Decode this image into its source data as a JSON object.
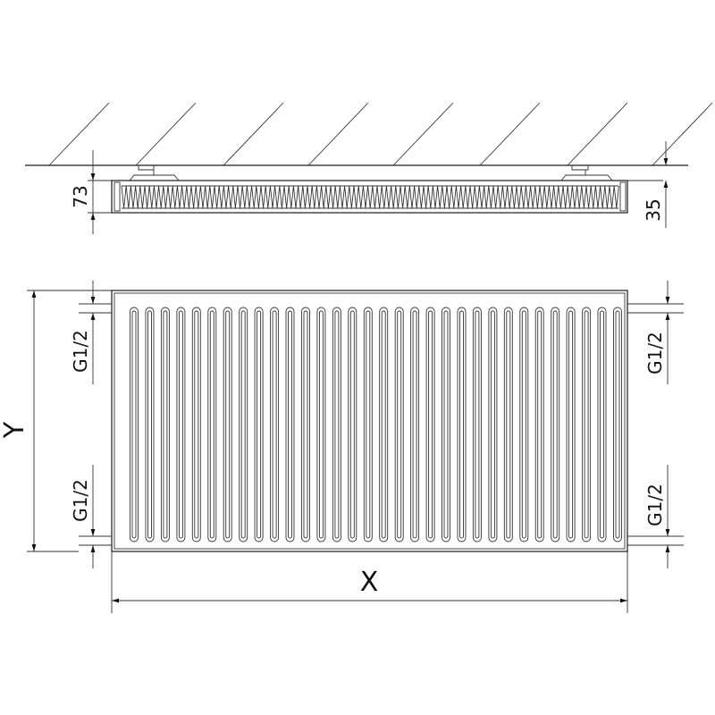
{
  "dimensions": {
    "depth": "73",
    "wall_gap": "35",
    "connection_top_left": "G1/2",
    "connection_bottom_left": "G1/2",
    "connection_top_right": "G1/2",
    "connection_bottom_right": "G1/2",
    "height": "Y",
    "width": "X"
  },
  "colors": {
    "line": "#1a1a1a",
    "background": "#ffffff"
  }
}
